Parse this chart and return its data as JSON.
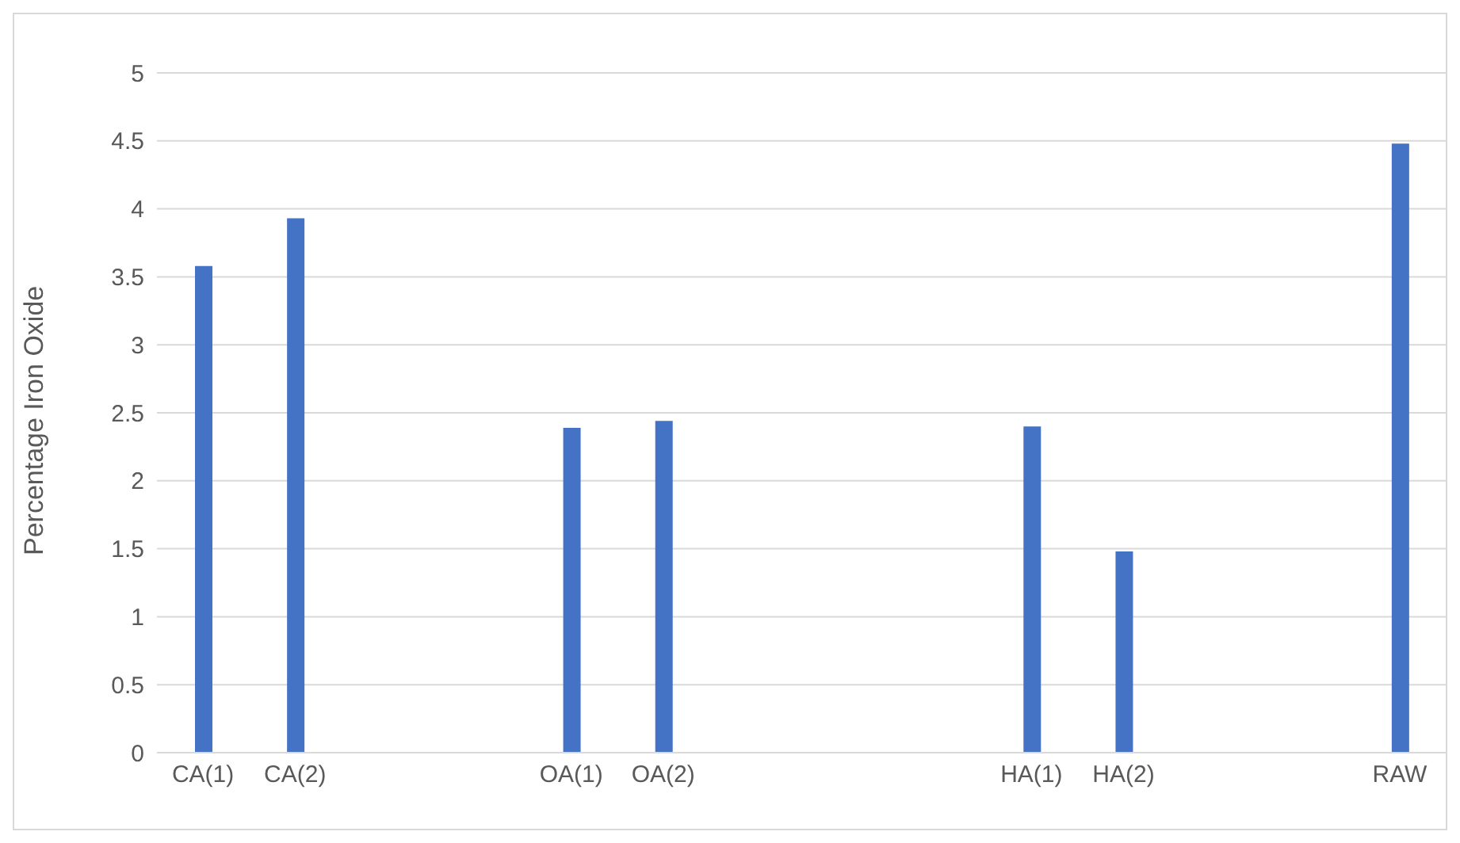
{
  "chart_data": {
    "type": "bar",
    "ylabel": "Percentage Iron Oxide",
    "categories": [
      "CA(1)",
      "CA(2)",
      null,
      null,
      "OA(1)",
      "OA(2)",
      null,
      null,
      null,
      "HA(1)",
      "HA(2)",
      null,
      null,
      "RAW"
    ],
    "values": [
      3.58,
      3.93,
      null,
      null,
      2.39,
      2.44,
      null,
      null,
      null,
      2.4,
      1.48,
      null,
      null,
      4.48
    ],
    "color": "#4472c4",
    "ylim": [
      0,
      5
    ],
    "yticks": [
      0,
      0.5,
      1,
      1.5,
      2,
      2.5,
      3,
      3.5,
      4,
      4.5,
      5
    ],
    "grid": "y",
    "legend": false
  }
}
